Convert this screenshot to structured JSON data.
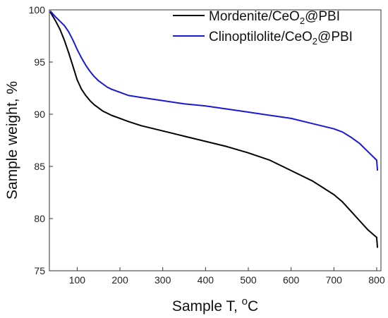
{
  "chart_data": {
    "type": "line",
    "xlabel": "Sample T, oC",
    "xlabel_parts": {
      "main": "Sample T, ",
      "superscript": "o",
      "unit": "C"
    },
    "ylabel": "Sample weight, %",
    "xlim": [
      35,
      810
    ],
    "ylim": [
      75,
      100
    ],
    "x_ticks": [
      100,
      200,
      300,
      400,
      500,
      600,
      700,
      800
    ],
    "y_ticks": [
      75,
      80,
      85,
      90,
      95,
      100
    ],
    "legend_position": "top-right",
    "grid": false,
    "series": [
      {
        "name": "Mordenite/CeO2@PBI",
        "name_parts": {
          "before": "Mordenite/CeO",
          "subscript": "2",
          "after": "@PBI"
        },
        "color": "#000000",
        "x": [
          37,
          50,
          60,
          70,
          80,
          90,
          100,
          110,
          120,
          130,
          140,
          150,
          160,
          170,
          180,
          200,
          220,
          250,
          300,
          350,
          400,
          450,
          500,
          550,
          600,
          650,
          700,
          720,
          740,
          760,
          780,
          800,
          802
        ],
        "y": [
          99.8,
          98.9,
          98.1,
          97.1,
          95.9,
          94.6,
          93.3,
          92.4,
          91.8,
          91.3,
          90.9,
          90.6,
          90.3,
          90.1,
          89.9,
          89.6,
          89.3,
          88.9,
          88.4,
          87.9,
          87.4,
          86.9,
          86.3,
          85.6,
          84.6,
          83.6,
          82.3,
          81.6,
          80.7,
          79.8,
          78.9,
          78.2,
          77.2
        ]
      },
      {
        "name": "Clinoptilolite/CeO2@PBI",
        "name_parts": {
          "before": "Clinoptilolite/CeO",
          "subscript": "2",
          "after": "@PBI"
        },
        "color": "#1a1ad6",
        "x": [
          37,
          50,
          60,
          70,
          80,
          90,
          100,
          110,
          120,
          130,
          140,
          150,
          160,
          170,
          180,
          200,
          220,
          250,
          300,
          350,
          400,
          450,
          500,
          550,
          600,
          650,
          700,
          720,
          740,
          760,
          780,
          800,
          802
        ],
        "y": [
          99.9,
          99.3,
          98.9,
          98.5,
          97.9,
          97.1,
          96.2,
          95.4,
          94.7,
          94.1,
          93.6,
          93.2,
          92.9,
          92.6,
          92.4,
          92.1,
          91.8,
          91.6,
          91.3,
          91.0,
          90.8,
          90.5,
          90.2,
          89.9,
          89.6,
          89.1,
          88.6,
          88.3,
          87.8,
          87.2,
          86.4,
          85.6,
          84.6
        ]
      }
    ]
  }
}
